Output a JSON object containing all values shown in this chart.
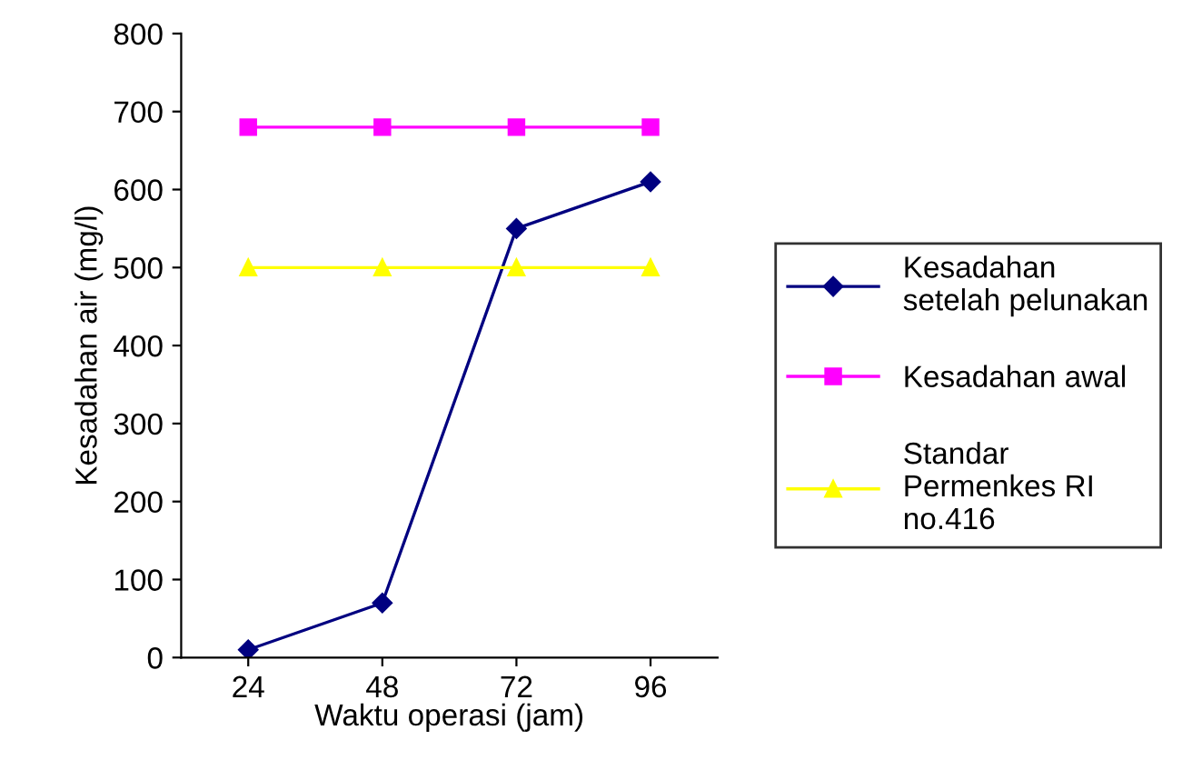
{
  "chart_data": {
    "type": "line",
    "xlabel": "Waktu operasi (jam)",
    "ylabel": "Kesadahan air (mg/l)",
    "categories": [
      "24",
      "48",
      "72",
      "96"
    ],
    "series": [
      {
        "name": "Kesadahan\nsetelah pelunakan",
        "color": "#000080",
        "marker": "diamond",
        "values": [
          10,
          70,
          550,
          610
        ]
      },
      {
        "name": "Kesadahan awal",
        "color": "#ff00ff",
        "marker": "square",
        "values": [
          680,
          680,
          680,
          680
        ]
      },
      {
        "name": "Standar\nPermenkes RI\nno.416",
        "color": "#ffff00",
        "marker": "triangle",
        "values": [
          500,
          500,
          500,
          500
        ]
      }
    ],
    "ylim": [
      0,
      800
    ],
    "yticks": [
      0,
      100,
      200,
      300,
      400,
      500,
      600,
      700,
      800
    ],
    "grid": false,
    "legend": "right"
  }
}
